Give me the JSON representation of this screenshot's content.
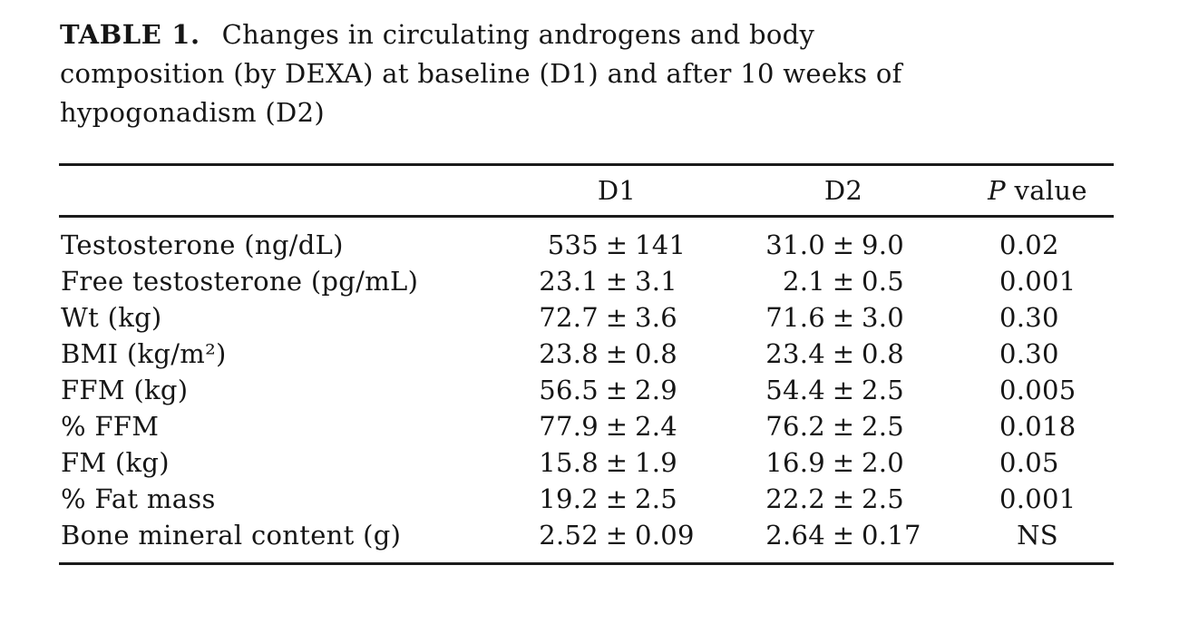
{
  "caption": {
    "label": "TABLE 1.",
    "lines": [
      "Changes in circulating androgens and body",
      "composition (by DEXA) at baseline (D1) and after 10 weeks of",
      "hypogonadism (D2)"
    ]
  },
  "table": {
    "pm_symbol": "±",
    "header": {
      "label": "",
      "d1": "D1",
      "d2": "D2",
      "p_italic": "P",
      "p_rest": " value"
    },
    "rows": [
      {
        "label": "Testosterone (ng/dL)",
        "d1_mean": "535",
        "d1_sd": "141",
        "d2_mean": "31.0",
        "d2_sd": "9.0",
        "p": "0.02"
      },
      {
        "label": "Free testosterone (pg/mL)",
        "d1_mean": "23.1",
        "d1_sd": "3.1",
        "d2_mean": "2.1",
        "d2_sd": "0.5",
        "p": "0.001"
      },
      {
        "label": "Wt (kg)",
        "d1_mean": "72.7",
        "d1_sd": "3.6",
        "d2_mean": "71.6",
        "d2_sd": "3.0",
        "p": "0.30"
      },
      {
        "label": "BMI (kg/m²)",
        "d1_mean": "23.8",
        "d1_sd": "0.8",
        "d2_mean": "23.4",
        "d2_sd": "0.8",
        "p": "0.30"
      },
      {
        "label": "FFM (kg)",
        "d1_mean": "56.5",
        "d1_sd": "2.9",
        "d2_mean": "54.4",
        "d2_sd": "2.5",
        "p": "0.005"
      },
      {
        "label": "% FFM",
        "d1_mean": "77.9",
        "d1_sd": "2.4",
        "d2_mean": "76.2",
        "d2_sd": "2.5",
        "p": "0.018"
      },
      {
        "label": "FM (kg)",
        "d1_mean": "15.8",
        "d1_sd": "1.9",
        "d2_mean": "16.9",
        "d2_sd": "2.0",
        "p": "0.05"
      },
      {
        "label": "% Fat mass",
        "d1_mean": "19.2",
        "d1_sd": "2.5",
        "d2_mean": "22.2",
        "d2_sd": "2.5",
        "p": "0.001"
      },
      {
        "label": "Bone mineral content (g)",
        "d1_mean": "2.52",
        "d1_sd": "0.09",
        "d2_mean": "2.64",
        "d2_sd": "0.17",
        "p": "NS"
      }
    ]
  }
}
